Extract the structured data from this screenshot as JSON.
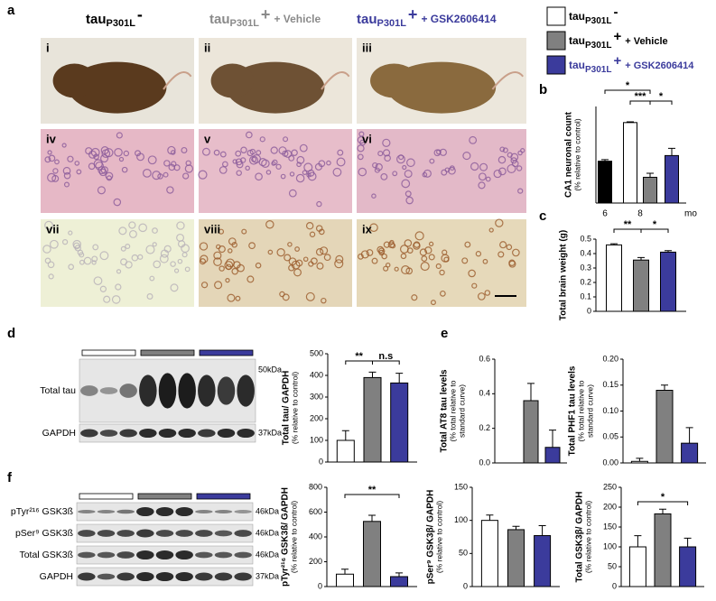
{
  "panel_letters": [
    "a",
    "b",
    "c",
    "d",
    "e",
    "f"
  ],
  "header": [
    {
      "main": "tau",
      "sub": "P301L",
      "sign": "-"
    },
    {
      "main": "tau",
      "sub": "P301L",
      "sign": "+",
      "extra": "+ Vehicle"
    },
    {
      "main": "tau",
      "sub": "P301L",
      "sign": "+",
      "extra": "+ GSK2606414"
    }
  ],
  "legend": [
    {
      "main": "tau",
      "sub": "P301L",
      "sign": "-",
      "color": "#ffffff"
    },
    {
      "main": "tau",
      "sub": "P301L",
      "sign": "+",
      "extra": "+ Vehicle",
      "color": "#808080"
    },
    {
      "main": "tau",
      "sub": "P301L",
      "sign": "+",
      "extra": "+ GSK2606414",
      "color": "#3b3b9c"
    }
  ],
  "photo_labels": [
    "i",
    "ii",
    "iii",
    "iv",
    "v",
    "vi",
    "vii",
    "viii",
    "ix"
  ],
  "blot_d": {
    "rows": [
      "Total tau",
      "GAPDH"
    ],
    "sizes": [
      "50kDa",
      "37kDa"
    ]
  },
  "blot_f": {
    "rows": [
      "pTyr²¹⁶ GSK3ß",
      "pSer⁹ GSK3ß",
      "Total GSK3ß",
      "GAPDH"
    ],
    "sizes": [
      "46kDa",
      "46kDa",
      "46kDa",
      "37kDa"
    ]
  },
  "chart_data": [
    {
      "type": "bar",
      "ylabel": [
        "CA1 neuronal count",
        "(% relative to control)"
      ],
      "categories": [
        null,
        null,
        null,
        null
      ],
      "group_labels": [
        "6",
        "8"
      ],
      "x_unit": "mo",
      "values": [
        52,
        100,
        32,
        59
      ],
      "errors": [
        2,
        1,
        5,
        9
      ],
      "colors": [
        "#000000",
        "#ffffff",
        "#808080",
        "#3b3b9c"
      ],
      "ylim": [
        0,
        120
      ],
      "annotations": [
        "*",
        "***",
        "*"
      ]
    },
    {
      "type": "bar",
      "ylabel": [
        "Total brain weight (g)"
      ],
      "categories": [
        null,
        null,
        null
      ],
      "values": [
        0.46,
        0.355,
        0.41
      ],
      "errors": [
        0.008,
        0.018,
        0.01
      ],
      "colors": [
        "#ffffff",
        "#808080",
        "#3b3b9c"
      ],
      "ylim": [
        0,
        0.5
      ],
      "yticks": [
        0,
        0.1,
        0.2,
        0.3,
        0.4,
        0.5
      ],
      "annotations": [
        "**",
        "*"
      ]
    },
    {
      "type": "bar",
      "ylabel": [
        "Total tau/ GAPDH",
        "(% relative to control)"
      ],
      "categories": [
        null,
        null,
        null
      ],
      "values": [
        100,
        390,
        365
      ],
      "errors": [
        45,
        25,
        45
      ],
      "colors": [
        "#ffffff",
        "#808080",
        "#3b3b9c"
      ],
      "ylim": [
        0,
        500
      ],
      "yticks": [
        0,
        100,
        200,
        300,
        400,
        500
      ],
      "annotations": [
        "**",
        "n.s"
      ]
    },
    {
      "type": "bar",
      "ylabel": [
        "Total AT8 tau levels",
        "(% total relative to",
        "standard curve)"
      ],
      "categories": [
        null,
        null,
        null
      ],
      "values": [
        0,
        0.36,
        0.09
      ],
      "errors": [
        0,
        0.1,
        0.1
      ],
      "colors": [
        "#ffffff",
        "#808080",
        "#3b3b9c"
      ],
      "ylim": [
        0,
        0.6
      ],
      "yticks": [
        {
          "value": 0,
          "label": "0.0"
        },
        0.2,
        0.4,
        0.6
      ]
    },
    {
      "type": "bar",
      "ylabel": [
        "Total PHF1 tau levels",
        "(% total relative to",
        "standard curve)"
      ],
      "categories": [
        null,
        null,
        null
      ],
      "values": [
        0.003,
        0.14,
        0.038
      ],
      "errors": [
        0.006,
        0.01,
        0.03
      ],
      "colors": [
        "#ffffff",
        "#808080",
        "#3b3b9c"
      ],
      "ylim": [
        0,
        0.2
      ],
      "yticks": [
        {
          "value": 0,
          "label": "0.00"
        },
        0.05,
        {
          "value": 0.1,
          "label": "0.10"
        },
        0.15,
        {
          "value": 0.2,
          "label": "0.20"
        }
      ]
    },
    {
      "type": "bar",
      "ylabel": [
        "pTyr²¹⁶ GSK3ß/ GAPDH",
        "(% relative to control)"
      ],
      "categories": [
        null,
        null,
        null
      ],
      "values": [
        100,
        525,
        80
      ],
      "errors": [
        40,
        50,
        30
      ],
      "colors": [
        "#ffffff",
        "#808080",
        "#3b3b9c"
      ],
      "ylim": [
        0,
        800
      ],
      "yticks": [
        0,
        200,
        400,
        600,
        800
      ],
      "annotations": [
        "**"
      ]
    },
    {
      "type": "bar",
      "ylabel": [
        "pSer⁹ GSK3β/ GAPDH",
        "(% relative to control)"
      ],
      "categories": [
        null,
        null,
        null
      ],
      "values": [
        100,
        86,
        77
      ],
      "errors": [
        8,
        5,
        15
      ],
      "colors": [
        "#ffffff",
        "#808080",
        "#3b3b9c"
      ],
      "ylim": [
        0,
        150
      ],
      "yticks": [
        0,
        50,
        100,
        150
      ]
    },
    {
      "type": "bar",
      "ylabel": [
        "Total GSK3β/ GAPDH",
        "(% relative to control)"
      ],
      "categories": [
        null,
        null,
        null
      ],
      "values": [
        100,
        183,
        100
      ],
      "errors": [
        28,
        12,
        22
      ],
      "colors": [
        "#ffffff",
        "#808080",
        "#3b3b9c"
      ],
      "ylim": [
        0,
        250
      ],
      "yticks": [
        0,
        50,
        100,
        150,
        200,
        250
      ],
      "annotations": [
        "*"
      ]
    }
  ]
}
